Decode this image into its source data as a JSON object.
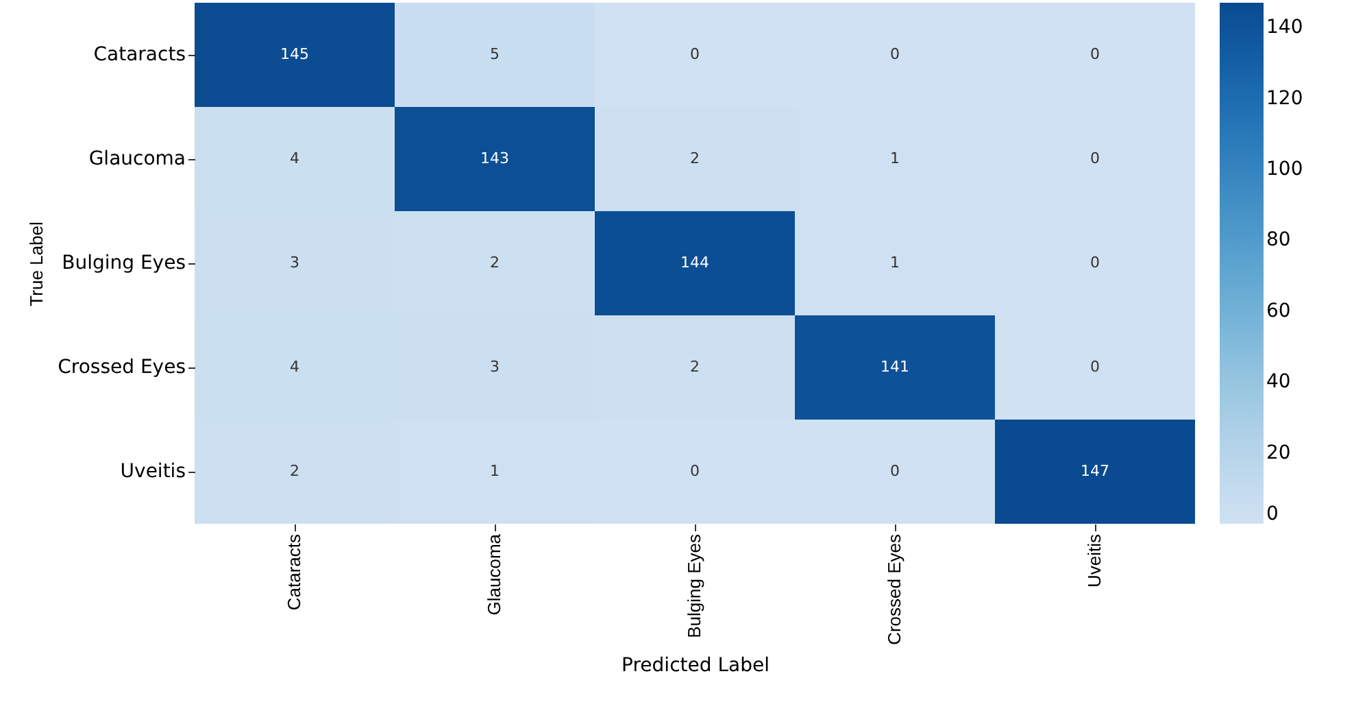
{
  "chart_data": {
    "type": "heatmap",
    "xlabel": "Predicted Label",
    "ylabel": "True Label",
    "categories": [
      "Cataracts",
      "Glaucoma",
      "Bulging Eyes",
      "Crossed Eyes",
      "Uveitis"
    ],
    "y_categories": [
      "Cataracts",
      "Glaucoma",
      "Bulging Eyes",
      "Crossed Eyes",
      "Uveitis"
    ],
    "cells": [
      [
        145,
        5,
        0,
        0,
        0
      ],
      [
        4,
        143,
        2,
        1,
        0
      ],
      [
        3,
        2,
        144,
        1,
        0
      ],
      [
        4,
        3,
        2,
        141,
        0
      ],
      [
        2,
        1,
        0,
        0,
        147
      ]
    ],
    "clim": [
      0,
      147
    ],
    "cticks": [
      0,
      20,
      40,
      60,
      80,
      100,
      120,
      140
    ],
    "data_labels": true
  }
}
